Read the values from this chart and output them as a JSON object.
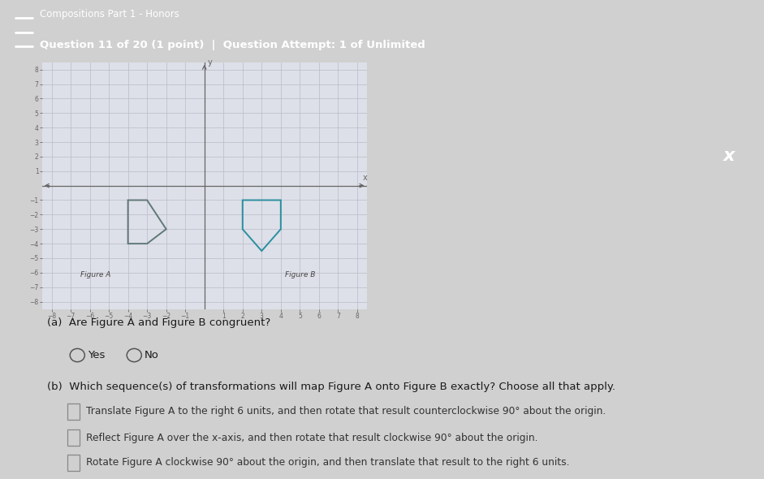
{
  "fig_width": 9.41,
  "fig_height": 5.9,
  "header_bg": "#4a8f4a",
  "header_text1": "Compositions Part 1 - Honors",
  "header_text2": "Question 11 of 20 (1 point)  |  Question Attempt: 1 of Unlimited",
  "body_bg": "#d0d0d0",
  "graph_bg": "#dde0e8",
  "grid_color": "#b8bcc8",
  "axis_color": "#666666",
  "figure_A_color": "#607878",
  "figure_B_color": "#2a8fa0",
  "figure_A_vertices": [
    [
      -4,
      -1
    ],
    [
      -3,
      -1
    ],
    [
      -2,
      -3
    ],
    [
      -3,
      -4
    ],
    [
      -4,
      -4
    ]
  ],
  "figure_B_vertices": [
    [
      2,
      -1
    ],
    [
      4,
      -1
    ],
    [
      4,
      -3
    ],
    [
      3,
      -4.5
    ],
    [
      2,
      -3
    ]
  ],
  "xlim": [
    -8.5,
    8.5
  ],
  "ylim": [
    -8.5,
    8.5
  ],
  "xticks": [
    -8,
    -7,
    -6,
    -5,
    -4,
    -3,
    -2,
    -1,
    1,
    2,
    3,
    4,
    5,
    6,
    7,
    8
  ],
  "yticks": [
    -8,
    -7,
    -6,
    -5,
    -4,
    -3,
    -2,
    -1,
    1,
    2,
    3,
    4,
    5,
    6,
    7,
    8
  ],
  "label_A": "Figure A",
  "label_B": "Figure B",
  "question_a": "(a)  Are Figure A and Figure B congruent?",
  "question_b": "(b)  Which sequence(s) of transformations will map Figure A onto Figure B exactly? Choose all that apply.",
  "choice1": "Translate Figure A to the right 6 units, and then rotate that result counterclockwise 90° about the origin.",
  "choice2": "Reflect Figure A over the x-axis, and then rotate that result clockwise 90° about the origin.",
  "choice3": "Rotate Figure A clockwise 90° about the origin, and then translate that result to the right 6 units.",
  "yes_label": "Yes",
  "no_label": "No",
  "xbtn_color": "#2a8fa0"
}
